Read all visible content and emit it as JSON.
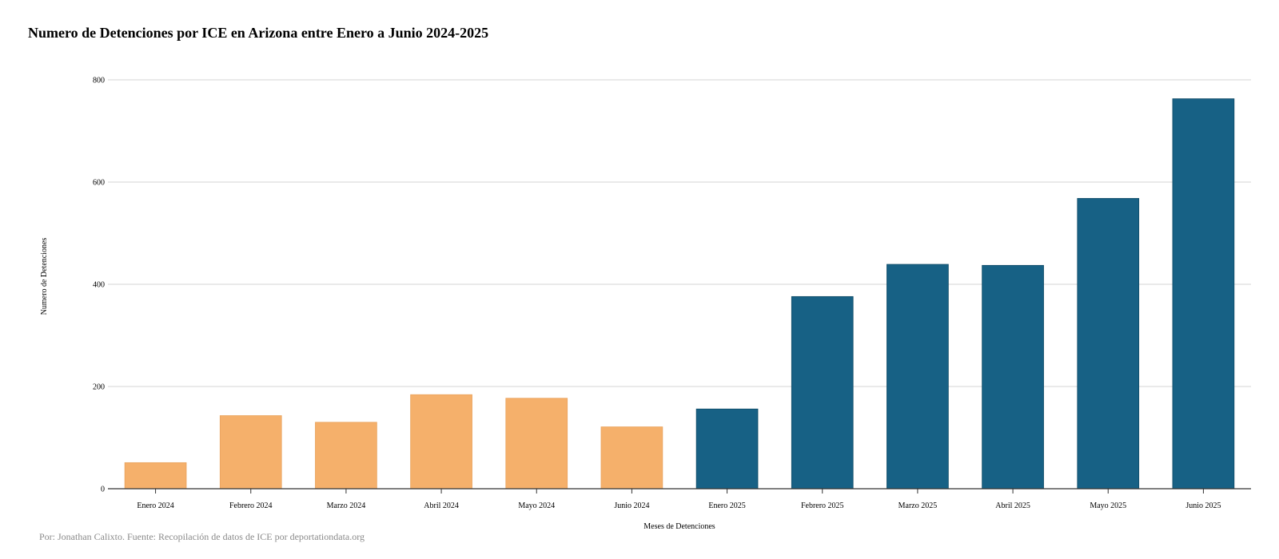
{
  "title": "Numero de Detenciones por ICE en Arizona entre Enero a Junio 2024-2025",
  "footer": "Por: Jonathan Calixto. Fuente: Recopilación de datos de ICE por deportationdata.org",
  "colors": {
    "bar_2024": "#F5B06B",
    "bar_2025": "#176185",
    "grid": "#d4d4d4",
    "axis": "#333333"
  },
  "chart_data": {
    "type": "bar",
    "title": "Numero de Detenciones por ICE en Arizona entre Enero a Junio 2024-2025",
    "xlabel": "Meses de Detenciones",
    "ylabel": "Numero de Detenciones",
    "ylim": [
      0,
      800
    ],
    "yticks": [
      0,
      200,
      400,
      600,
      800
    ],
    "grid": true,
    "categories": [
      "Enero 2024",
      "Febrero 2024",
      "Marzo 2024",
      "Abril 2024",
      "Mayo 2024",
      "Junio 2024",
      "Enero 2025",
      "Febrero 2025",
      "Marzo 2025",
      "Abril 2025",
      "Mayo 2025",
      "Junio 2025"
    ],
    "values": [
      51,
      143,
      130,
      184,
      177,
      121,
      156,
      376,
      439,
      437,
      568,
      763
    ],
    "bar_colors": [
      "#F5B06B",
      "#F5B06B",
      "#F5B06B",
      "#F5B06B",
      "#F5B06B",
      "#F5B06B",
      "#176185",
      "#176185",
      "#176185",
      "#176185",
      "#176185",
      "#176185"
    ]
  }
}
